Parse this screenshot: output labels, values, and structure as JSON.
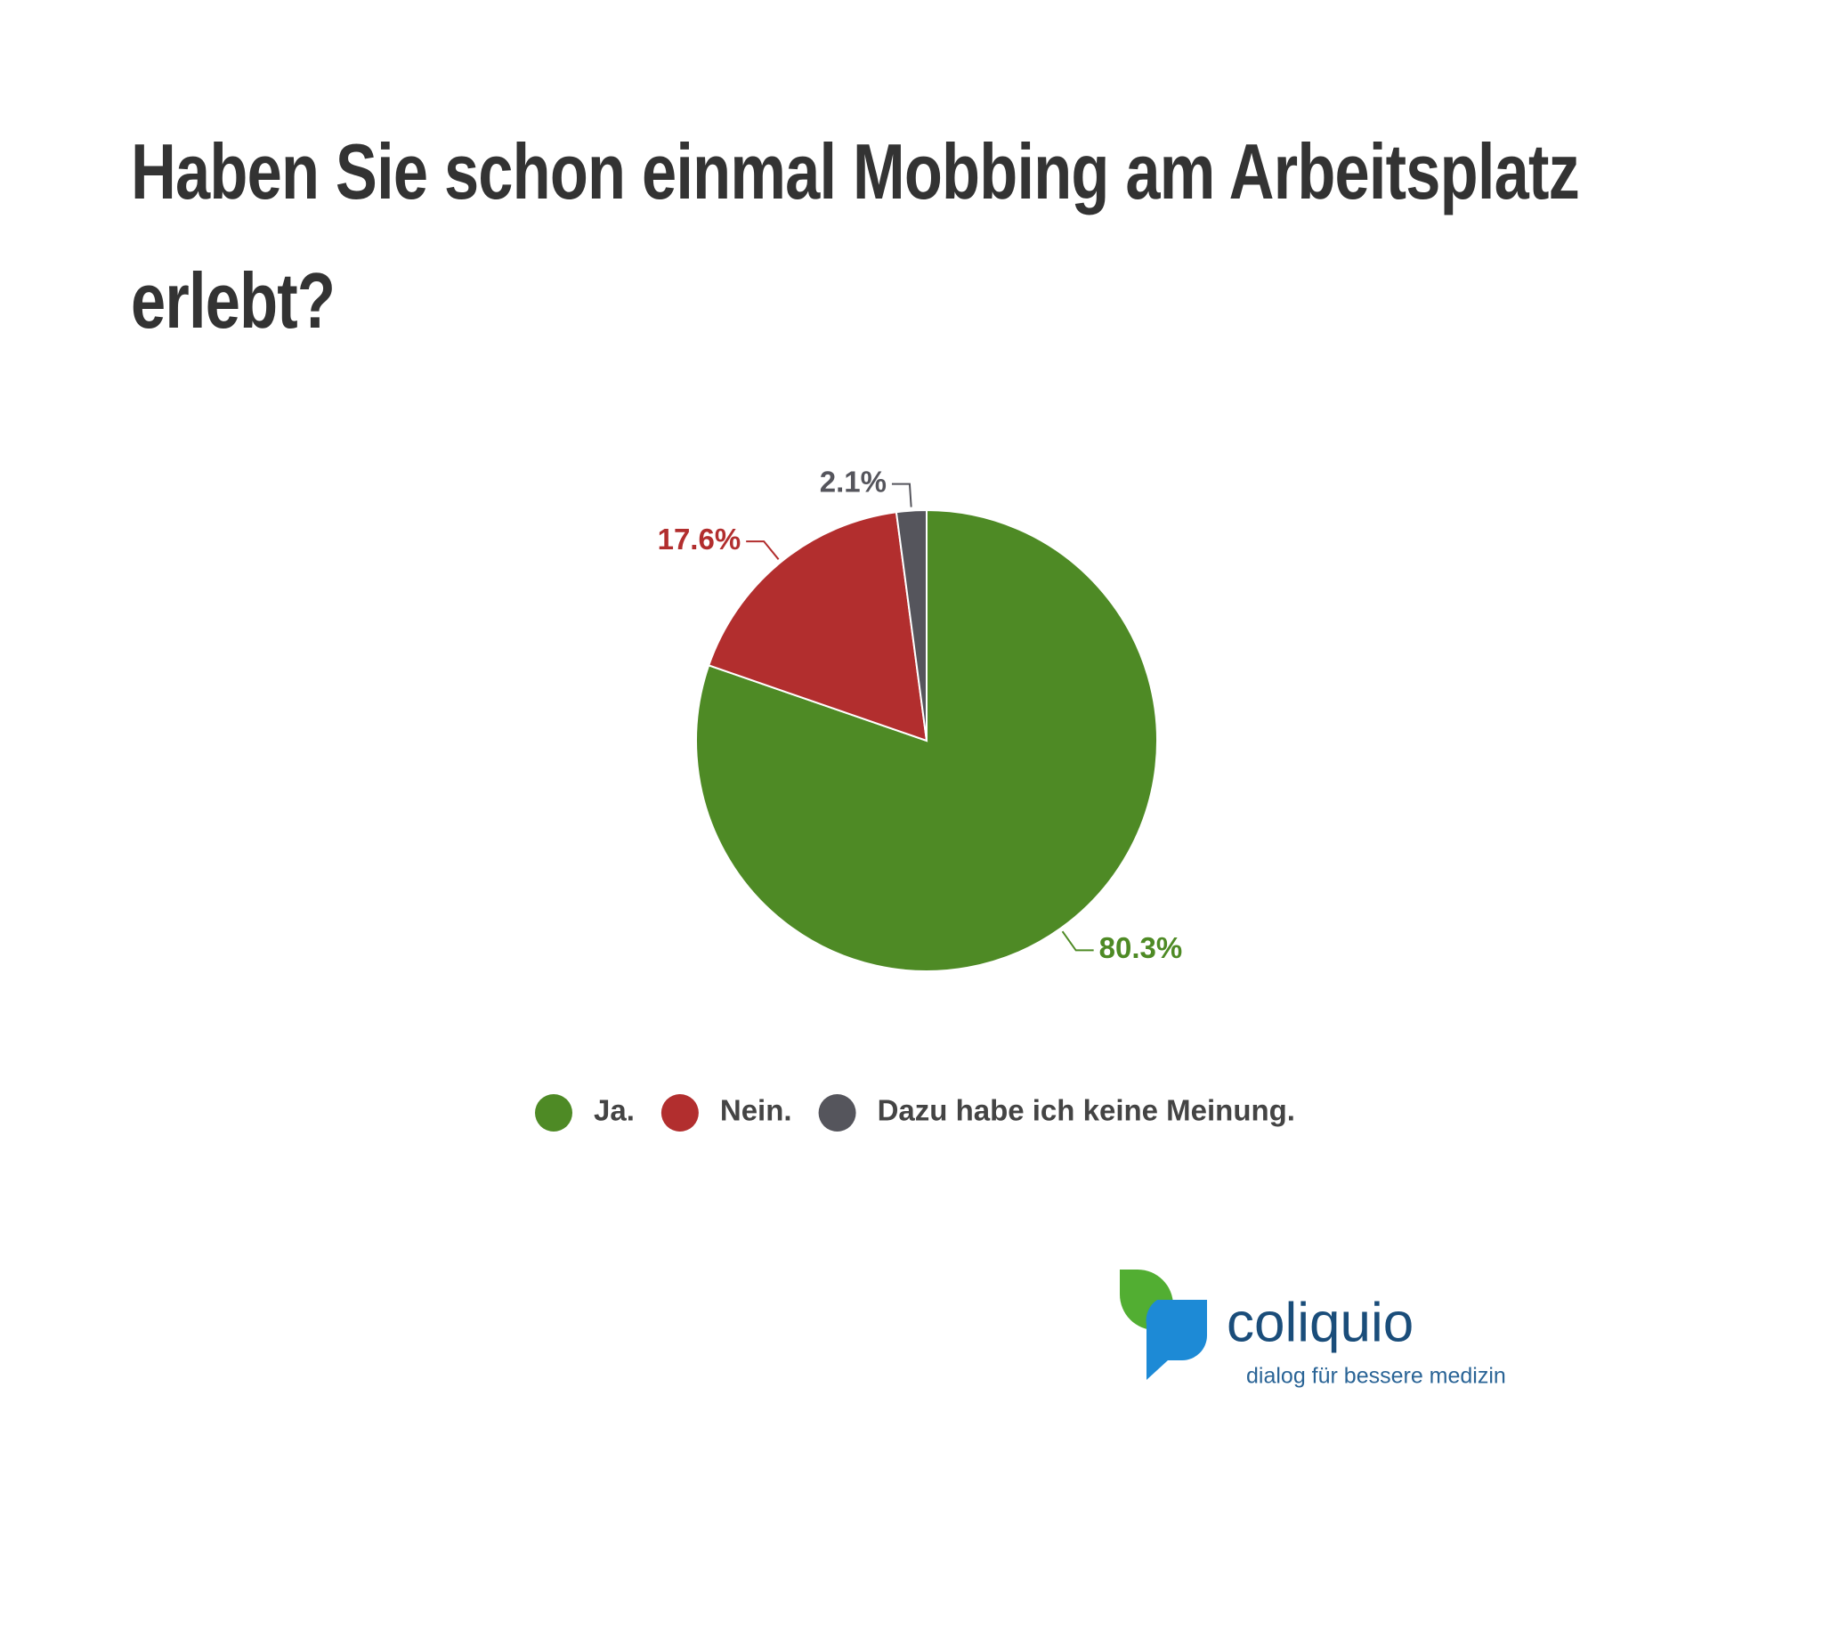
{
  "chart_data": {
    "type": "pie",
    "title": "Haben Sie schon einmal Mobbing am Arbeitsplatz erlebt?",
    "categories": [
      "Ja.",
      "Nein.",
      "Dazu habe ich keine Meinung."
    ],
    "values": [
      80.3,
      17.6,
      2.1
    ],
    "value_labels": [
      "80.3%",
      "17.6%",
      "2.1%"
    ],
    "colors": [
      "#4e8a25",
      "#b22e2e",
      "#55555c"
    ],
    "legend": "bottom"
  },
  "logo": {
    "name": "coliquio",
    "tagline": "dialog für bessere medizin"
  }
}
